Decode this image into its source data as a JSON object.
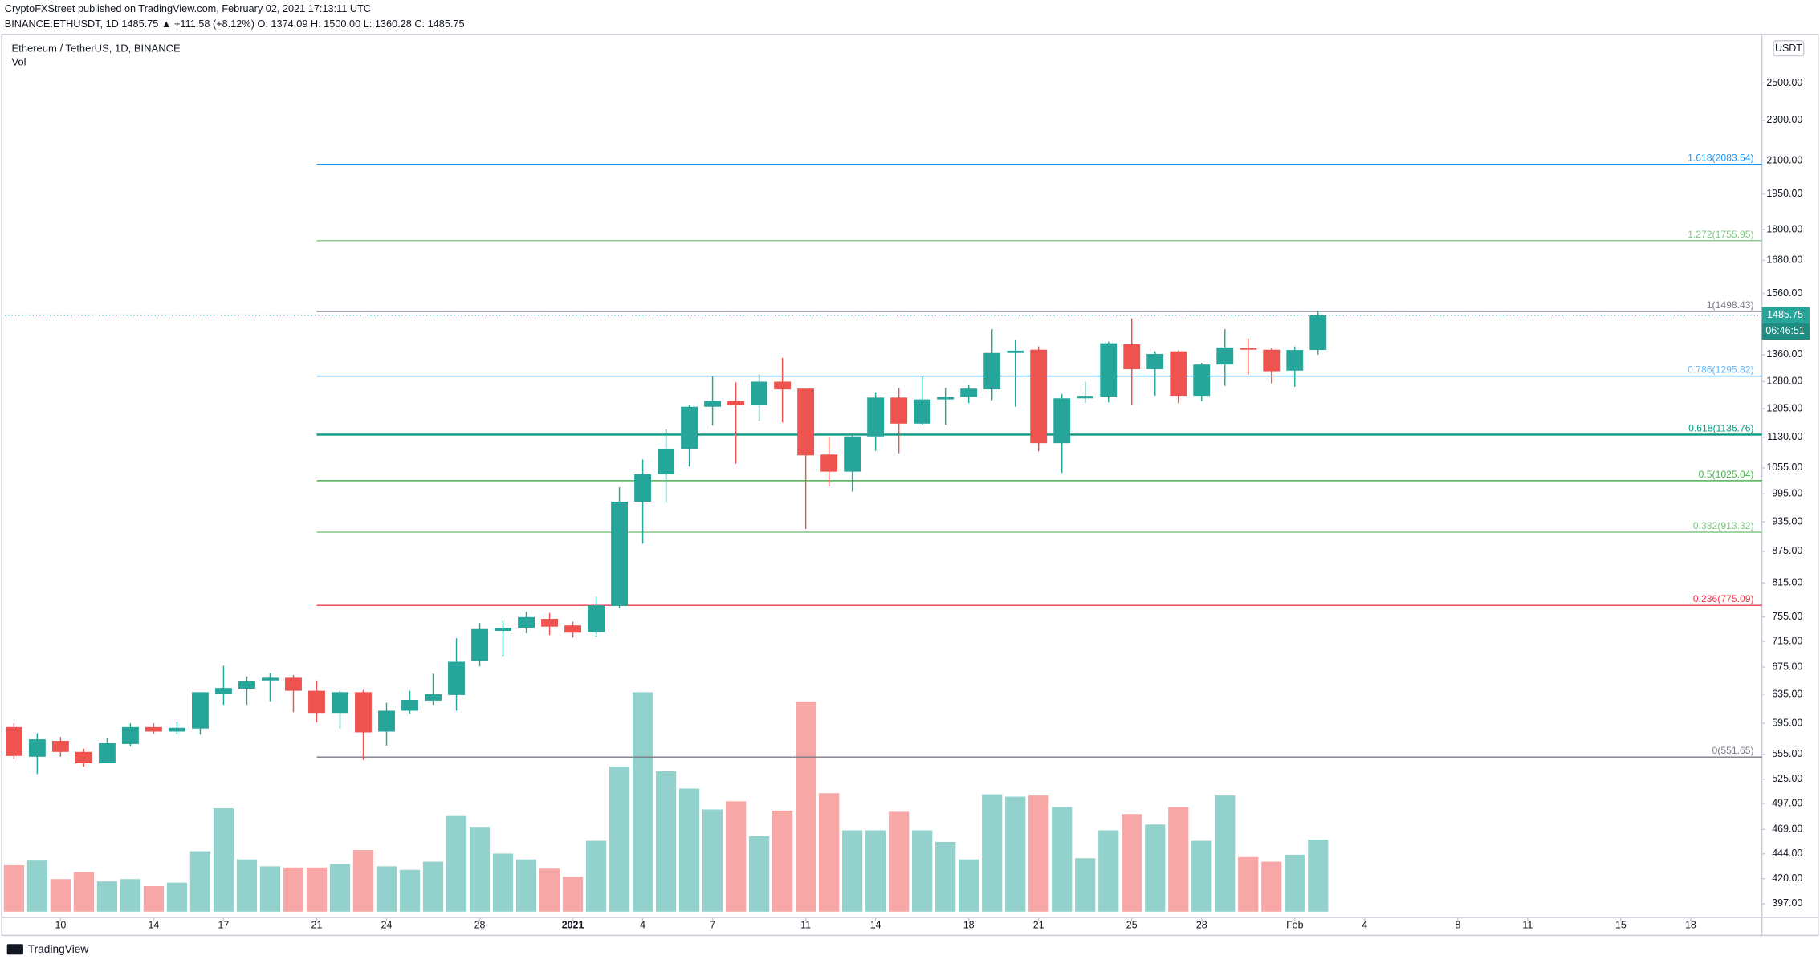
{
  "header": {
    "publisher": "CryptoFXStreet published on TradingView.com, February 02, 2021 17:13:11 UTC",
    "quote": "BINANCE:ETHUSDT, 1D  1485.75  ▲ +111.58 (+8.12%)  O: 1374.09  H: 1500.00  L: 1360.28  C: 1485.75"
  },
  "footer": {
    "brand": "TradingView"
  },
  "chart_data": {
    "type": "candlestick",
    "title": "Ethereum / TetherUS, 1D, BINANCE",
    "volume_label": "Vol",
    "currency": "USDT",
    "countdown": "06:46:51",
    "last_price_label": "1485.75",
    "up_color": "#26a69a",
    "down_color": "#ef5350",
    "volume_up_color": "#93d2cc",
    "volume_down_color": "#f7a7a6",
    "log_scale": true,
    "x": [
      0,
      1,
      2,
      3,
      4,
      5,
      6,
      7,
      8,
      9,
      10,
      11,
      12,
      13,
      14,
      15,
      16,
      17,
      18,
      19,
      20,
      21,
      22,
      23,
      24,
      25,
      26,
      27,
      28,
      29,
      30,
      31,
      32,
      33,
      34,
      35,
      36,
      37,
      38,
      39,
      40,
      41,
      42,
      43,
      44,
      45,
      46,
      47,
      48,
      49,
      50,
      51,
      52,
      53,
      54,
      55,
      56
    ],
    "open": [
      590,
      552,
      572,
      558,
      544,
      568,
      590,
      584,
      588,
      636,
      643,
      655,
      659,
      640,
      609,
      638,
      584,
      612,
      626,
      634,
      684,
      732,
      737,
      752,
      741,
      730,
      774,
      978,
      1040,
      1100,
      1210,
      1226,
      1215,
      1280,
      1260,
      1087,
      1046,
      1132,
      1235,
      1165,
      1230,
      1237,
      1258,
      1365,
      1375,
      1115,
      1233,
      1238,
      1392,
      1316,
      1370,
      1240,
      1330,
      1380,
      1375,
      1312,
      1374.09
    ],
    "high": [
      595,
      582,
      577,
      562,
      575,
      595,
      595,
      597,
      634,
      677,
      661,
      666,
      663,
      655,
      640,
      641,
      623,
      640,
      665,
      720,
      745,
      749,
      764,
      762,
      747,
      790,
      1010,
      1075,
      1150,
      1215,
      1295,
      1278,
      1300,
      1350,
      1260,
      1131,
      1140,
      1250,
      1262,
      1295,
      1262,
      1270,
      1440,
      1405,
      1385,
      1245,
      1280,
      1400,
      1475,
      1370,
      1373,
      1335,
      1440,
      1410,
      1380,
      1385,
      1500
    ],
    "low": [
      549,
      531,
      552,
      540,
      544,
      565,
      581,
      580,
      580,
      620,
      620,
      625,
      610,
      596,
      588,
      548,
      566,
      608,
      620,
      612,
      676,
      692,
      728,
      725,
      721,
      723,
      770,
      890,
      975,
      1058,
      1160,
      1065,
      1172,
      1168,
      920,
      1012,
      1000,
      1096,
      1090,
      1160,
      1162,
      1220,
      1228,
      1210,
      1095,
      1043,
      1220,
      1222,
      1215,
      1240,
      1220,
      1225,
      1268,
      1300,
      1275,
      1265,
      1360.28
    ],
    "close": [
      553,
      574,
      558,
      544,
      569,
      590,
      584,
      589,
      638,
      644,
      654,
      659,
      640,
      609,
      638,
      583,
      612,
      627,
      635,
      683,
      735,
      737,
      755,
      739,
      729,
      775,
      978,
      1040,
      1100,
      1210,
      1226,
      1215,
      1280,
      1258,
      1085,
      1046,
      1132,
      1235,
      1165,
      1230,
      1237,
      1260,
      1365,
      1372,
      1115,
      1233,
      1240,
      1395,
      1316,
      1362,
      1240,
      1330,
      1382,
      1375,
      1310,
      1374,
      1485.75
    ],
    "volume": [
      20,
      22,
      14,
      17,
      13,
      14,
      11,
      12.5,
      26,
      44.5,
      22.5,
      19.5,
      19,
      19,
      20.5,
      26.5,
      19.5,
      18,
      21.5,
      41.5,
      36.5,
      25,
      22.5,
      18.5,
      15,
      30.5,
      62.5,
      94.5,
      60.5,
      53,
      44,
      47.5,
      32.5,
      43.5,
      90.5,
      51,
      35,
      35,
      43,
      35,
      30,
      22.5,
      50.5,
      49.5,
      50,
      45,
      23,
      35,
      42,
      37.5,
      45,
      30.5,
      50,
      23.5,
      21.5,
      24.5,
      31
    ],
    "vlim": [
      0,
      100
    ],
    "xlim": [
      -0.4,
      75.06
    ],
    "xticks": [
      {
        "value": 2,
        "label": "10"
      },
      {
        "value": 6,
        "label": "14"
      },
      {
        "value": 9,
        "label": "17"
      },
      {
        "value": 13,
        "label": "21"
      },
      {
        "value": 16,
        "label": "24"
      },
      {
        "value": 20,
        "label": "28"
      },
      {
        "value": 24,
        "label": "2021"
      },
      {
        "value": 27,
        "label": "4"
      },
      {
        "value": 30,
        "label": "7"
      },
      {
        "value": 34,
        "label": "11"
      },
      {
        "value": 37,
        "label": "14"
      },
      {
        "value": 41,
        "label": "18"
      },
      {
        "value": 44,
        "label": "21"
      },
      {
        "value": 48,
        "label": "25"
      },
      {
        "value": 51,
        "label": "28"
      },
      {
        "value": 55,
        "label": "Feb"
      },
      {
        "value": 58,
        "label": "4"
      },
      {
        "value": 62,
        "label": "8"
      },
      {
        "value": 65,
        "label": "11"
      },
      {
        "value": 69,
        "label": "15"
      },
      {
        "value": 72,
        "label": "18"
      }
    ],
    "ylim": [
      385,
      2785
    ],
    "yticks": [
      {
        "value": 2500,
        "label": "2500.00"
      },
      {
        "value": 2300,
        "label": "2300.00"
      },
      {
        "value": 2100,
        "label": "2100.00"
      },
      {
        "value": 1950,
        "label": "1950.00"
      },
      {
        "value": 1800,
        "label": "1800.00"
      },
      {
        "value": 1680,
        "label": "1680.00"
      },
      {
        "value": 1560,
        "label": "1560.00"
      },
      {
        "value": 1360,
        "label": "1360.00"
      },
      {
        "value": 1280,
        "label": "1280.00"
      },
      {
        "value": 1205,
        "label": "1205.00"
      },
      {
        "value": 1130,
        "label": "1130.00"
      },
      {
        "value": 1055,
        "label": "1055.00"
      },
      {
        "value": 995,
        "label": "995.00"
      },
      {
        "value": 935,
        "label": "935.00"
      },
      {
        "value": 875,
        "label": "875.00"
      },
      {
        "value": 815,
        "label": "815.00"
      },
      {
        "value": 755,
        "label": "755.00"
      },
      {
        "value": 715,
        "label": "715.00"
      },
      {
        "value": 675,
        "label": "675.00"
      },
      {
        "value": 635,
        "label": "635.00"
      },
      {
        "value": 595,
        "label": "595.00"
      },
      {
        "value": 555,
        "label": "555.00"
      },
      {
        "value": 525,
        "label": "525.00"
      },
      {
        "value": 497,
        "label": "497.00"
      },
      {
        "value": 469,
        "label": "469.00"
      },
      {
        "value": 444,
        "label": "444.00"
      },
      {
        "value": 420,
        "label": "420.00"
      },
      {
        "value": 397,
        "label": "397.00"
      }
    ],
    "fib_start": 13,
    "fib_levels": [
      {
        "label": "1.618(2083.54)",
        "value": 2083.54,
        "color": "#2196f3"
      },
      {
        "label": "1.272(1755.95)",
        "value": 1755.95,
        "color": "#81c784"
      },
      {
        "label": "1(1498.43)",
        "value": 1498.43,
        "color": "#787b86"
      },
      {
        "label": "0.786(1295.82)",
        "value": 1295.82,
        "color": "#64b5f6"
      },
      {
        "label": "0.618(1136.76)",
        "value": 1136.76,
        "color": "#089981"
      },
      {
        "label": "0.5(1025.04)",
        "value": 1025.04,
        "color": "#4caf50"
      },
      {
        "label": "0.382(913.32)",
        "value": 913.32,
        "color": "#81c784"
      },
      {
        "label": "0.236(775.09)",
        "value": 775.09,
        "color": "#f23645"
      },
      {
        "label": "0(551.65)",
        "value": 551.65,
        "color": "#787b86"
      }
    ]
  }
}
